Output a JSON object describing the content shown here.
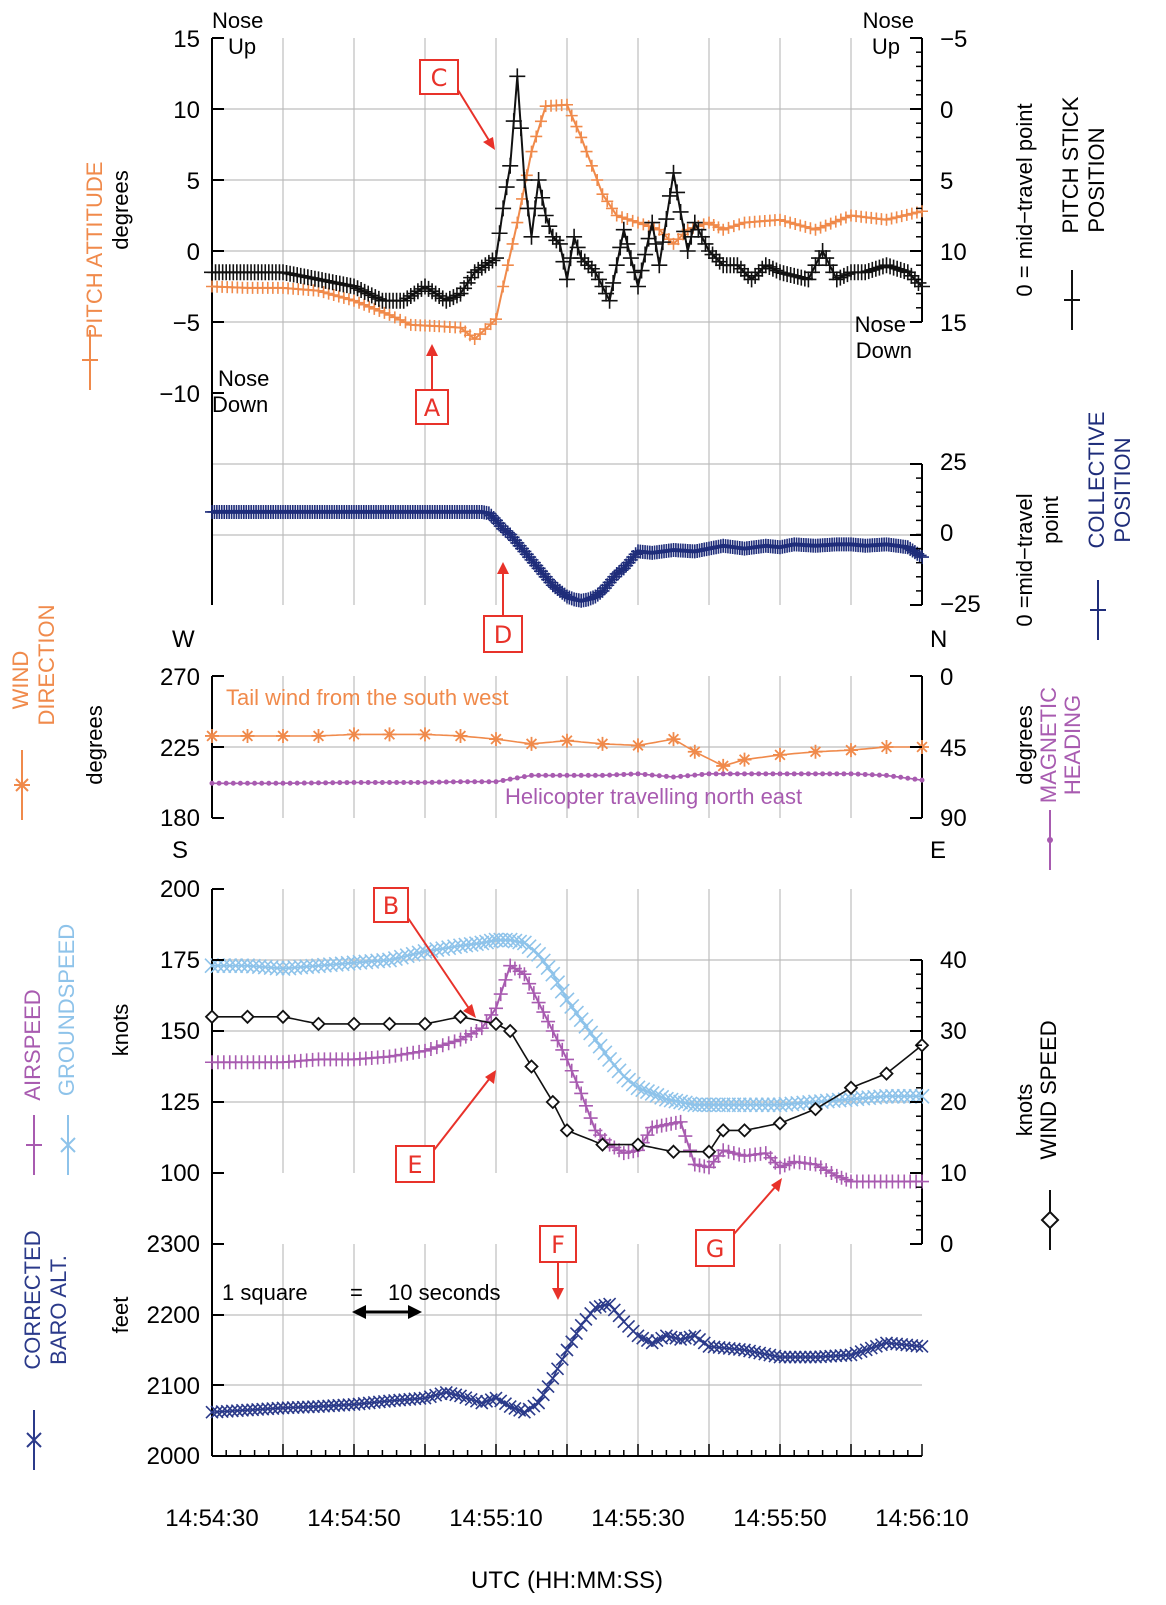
{
  "colors": {
    "pitch": "#f08a4b",
    "stick": "#111111",
    "collective": "#1f2d7a",
    "wind_dir": "#f08a4b",
    "heading": "#a85bb0",
    "airspeed": "#a85bb0",
    "groundspeed": "#8ec3ea",
    "wind_speed": "#111111",
    "baro": "#2b3a8a",
    "callout": "#e8322a",
    "grid": "#bdbdbd"
  },
  "xaxis": {
    "label": "UTC (HH:MM:SS)",
    "ticks": [
      "14:54:30",
      "14:54:50",
      "14:55:10",
      "14:55:30",
      "14:55:50",
      "14:56:10"
    ],
    "range_s": [
      0,
      100
    ]
  },
  "panels": {
    "pitch": {
      "left_label": "PITCH ATTITUDE",
      "left_unit": "degrees",
      "left_ticks": [
        "15",
        "10",
        "5",
        "0",
        "−5",
        "−10"
      ],
      "right_label1": "PITCH STICK",
      "right_label2": "POSITION",
      "right_unit": "0 = mid−travel point",
      "right_ticks": [
        "−5",
        "0",
        "5",
        "10",
        "15"
      ],
      "nose_up_l1": "Nose",
      "nose_up_l2": "Up",
      "nose_up_r1": "Nose",
      "nose_up_r2": "Up",
      "nose_down_l1": "Nose",
      "nose_down_l2": "Down",
      "nose_down_r1": "Nose",
      "nose_down_r2": "Down"
    },
    "collective": {
      "right_label1": "COLLECTIVE",
      "right_label2": "POSITION",
      "right_unit1": "0 =mid−travel",
      "right_unit2": "point",
      "right_ticks": [
        "25",
        "0",
        "−25"
      ]
    },
    "wind": {
      "left_label1": "WIND",
      "left_label2": "DIRECTION",
      "left_unit": "degrees",
      "left_ticks": [
        "270",
        "225",
        "180"
      ],
      "right_label1": "MAGNETIC",
      "right_label2": "HEADING",
      "right_unit": "degrees",
      "right_ticks": [
        "0",
        "45",
        "90"
      ],
      "compass_w": "W",
      "compass_s": "S",
      "compass_n": "N",
      "compass_e": "E",
      "note_top": "Tail wind from the south west",
      "note_bottom": "Helicopter travelling north east"
    },
    "speed": {
      "left_label1": "AIRSPEED",
      "left_label2": "GROUNDSPEED",
      "left_unit": "knots",
      "left_ticks": [
        "200",
        "175",
        "150",
        "125",
        "100"
      ],
      "right_label": "WIND SPEED",
      "right_unit": "knots",
      "right_ticks": [
        "40",
        "30",
        "20",
        "10",
        "0"
      ]
    },
    "baro": {
      "left_label1": "CORRECTED",
      "left_label2": "BARO ALT.",
      "left_unit": "feet",
      "left_ticks": [
        "2300",
        "2200",
        "2100",
        "2000"
      ],
      "scale_note_1": "1 square",
      "scale_note_eq": "=",
      "scale_note_2": "10 seconds"
    }
  },
  "callouts": {
    "A": "A",
    "B": "B",
    "C": "C",
    "D": "D",
    "E": "E",
    "F": "F",
    "G": "G"
  },
  "chart_data": [
    {
      "type": "line",
      "x_unit": "seconds after 14:54:30",
      "series": [
        {
          "name": "PITCH ATTITUDE",
          "axis": "left",
          "ylim": [
            -10,
            15
          ],
          "x": [
            0,
            5,
            10,
            15,
            20,
            25,
            28,
            32,
            35,
            37,
            40,
            41,
            43,
            45,
            47,
            50,
            52,
            55,
            57,
            60,
            63,
            65,
            67,
            70,
            72,
            75,
            80,
            85,
            90,
            95,
            100
          ],
          "y": [
            -2.5,
            -2.6,
            -2.6,
            -2.8,
            -3.5,
            -4.5,
            -5.2,
            -5.3,
            -5.4,
            -6.2,
            -4.8,
            -2.5,
            2.0,
            7.0,
            10.2,
            10.3,
            8.0,
            4.0,
            2.5,
            2.0,
            1.5,
            0.5,
            1.5,
            2.0,
            1.5,
            2.0,
            2.2,
            1.5,
            2.5,
            2.2,
            2.8
          ]
        },
        {
          "name": "PITCH STICK POSITION",
          "axis": "right",
          "ylim": [
            -5,
            15
          ],
          "x": [
            0,
            5,
            10,
            15,
            20,
            24,
            27,
            30,
            33,
            35,
            37,
            40,
            41,
            42,
            43,
            44,
            45,
            46,
            47,
            48,
            49,
            50,
            51,
            52,
            54,
            56,
            58,
            60,
            62,
            63,
            65,
            67,
            68,
            70,
            72,
            74,
            76,
            78,
            80,
            84,
            86,
            88,
            90,
            92,
            95,
            98,
            100
          ],
          "y": [
            11.5,
            11.5,
            11.5,
            12,
            12.5,
            13.5,
            13.5,
            12.5,
            13.5,
            13,
            11.5,
            10.5,
            7,
            4,
            -2.3,
            5,
            9,
            5,
            7.5,
            9,
            9.5,
            12,
            9,
            10.5,
            11.5,
            13.5,
            8.5,
            12.5,
            8,
            11,
            4.5,
            10,
            8,
            10,
            11,
            11,
            12,
            11,
            11.5,
            12,
            10,
            12,
            11.5,
            11.5,
            11,
            11.5,
            12.5
          ]
        }
      ]
    },
    {
      "type": "line",
      "x_unit": "seconds after 14:54:30",
      "series": [
        {
          "name": "COLLECTIVE POSITION",
          "ylim": [
            -25,
            25
          ],
          "x": [
            0,
            10,
            20,
            30,
            38,
            39,
            40,
            41,
            42,
            43,
            44,
            45,
            46,
            47,
            48,
            49,
            50,
            51,
            52,
            53,
            54,
            55,
            56,
            57,
            58,
            60,
            62,
            65,
            68,
            70,
            72,
            75,
            78,
            80,
            82,
            85,
            88,
            90,
            92,
            95,
            98,
            100
          ],
          "y": [
            8,
            8,
            8,
            8,
            8,
            7.5,
            5,
            2,
            0,
            -3,
            -6,
            -9,
            -12,
            -15,
            -18,
            -20,
            -22,
            -23,
            -23.5,
            -23,
            -22,
            -20,
            -17,
            -14,
            -12,
            -6,
            -6.5,
            -5.5,
            -6,
            -5,
            -4,
            -5,
            -4,
            -4.5,
            -3.5,
            -4,
            -3.5,
            -3.5,
            -4,
            -3.5,
            -4.5,
            -8
          ]
        }
      ]
    },
    {
      "type": "line",
      "x_unit": "seconds after 14:54:30",
      "series": [
        {
          "name": "WIND DIRECTION",
          "axis": "left",
          "ylim": [
            180,
            270
          ],
          "x": [
            0,
            5,
            10,
            15,
            20,
            25,
            30,
            35,
            40,
            45,
            50,
            55,
            60,
            65,
            68,
            72,
            75,
            80,
            85,
            90,
            95,
            100
          ],
          "y": [
            232,
            232,
            232,
            232,
            233,
            233,
            233,
            232,
            230,
            227,
            229,
            227,
            226,
            230,
            222,
            213,
            217,
            220,
            222,
            223,
            225,
            225
          ]
        },
        {
          "name": "MAGNETIC HEADING",
          "axis": "right",
          "ylim": [
            0,
            90
          ],
          "x": [
            0,
            10,
            20,
            30,
            35,
            38,
            40,
            45,
            50,
            55,
            60,
            65,
            70,
            75,
            80,
            85,
            90,
            95,
            100
          ],
          "y": [
            68,
            68,
            67.5,
            67.5,
            67,
            67,
            67,
            63,
            63,
            63,
            62,
            64,
            62,
            62,
            62,
            62,
            62,
            63,
            66
          ]
        }
      ]
    },
    {
      "type": "line",
      "x_unit": "seconds after 14:54:30",
      "series": [
        {
          "name": "AIRSPEED",
          "axis": "left",
          "ylim": [
            100,
            200
          ],
          "x": [
            0,
            5,
            10,
            15,
            20,
            25,
            30,
            35,
            38,
            40,
            42,
            44,
            46,
            48,
            50,
            52,
            54,
            56,
            58,
            60,
            62,
            64,
            66,
            68,
            70,
            72,
            75,
            78,
            80,
            82,
            85,
            88,
            90,
            95,
            100
          ],
          "y": [
            139,
            139,
            139,
            140,
            140,
            141,
            143,
            147,
            151,
            158,
            173,
            170,
            160,
            150,
            140,
            128,
            115,
            110,
            107,
            108,
            116,
            117,
            118,
            103,
            102,
            108,
            106,
            107,
            102,
            104,
            103,
            99,
            97,
            97,
            97
          ]
        },
        {
          "name": "GROUNDSPEED",
          "axis": "left",
          "ylim": [
            100,
            200
          ],
          "x": [
            0,
            5,
            10,
            15,
            20,
            25,
            30,
            35,
            38,
            40,
            42,
            44,
            46,
            48,
            50,
            52,
            54,
            56,
            58,
            60,
            62,
            64,
            66,
            68,
            70,
            72,
            75,
            80,
            85,
            90,
            95,
            100
          ],
          "y": [
            173,
            173,
            172,
            173,
            174,
            175,
            178,
            180,
            181,
            182,
            182,
            181,
            177,
            170,
            161,
            154,
            147,
            140,
            134,
            130,
            128,
            126,
            125,
            124,
            124,
            124,
            124,
            124,
            125,
            126,
            127,
            127
          ]
        },
        {
          "name": "WIND SPEED",
          "axis": "right",
          "ylim": [
            0,
            40
          ],
          "x": [
            0,
            5,
            10,
            15,
            20,
            25,
            30,
            35,
            40,
            42,
            45,
            48,
            50,
            55,
            60,
            65,
            70,
            72,
            75,
            80,
            85,
            90,
            95,
            100
          ],
          "y": [
            32,
            32,
            32,
            31,
            31,
            31,
            31,
            32,
            31,
            30,
            25,
            20,
            16,
            14,
            14,
            13,
            13,
            16,
            16,
            17,
            19,
            22,
            24,
            28
          ]
        }
      ]
    },
    {
      "type": "line",
      "x_unit": "seconds after 14:54:30",
      "series": [
        {
          "name": "CORRECTED BARO ALT.",
          "axis": "left",
          "ylim": [
            2000,
            2300
          ],
          "x": [
            0,
            5,
            10,
            15,
            20,
            25,
            30,
            33,
            35,
            38,
            40,
            42,
            44,
            46,
            48,
            50,
            52,
            54,
            56,
            58,
            60,
            62,
            64,
            66,
            68,
            70,
            75,
            80,
            85,
            90,
            95,
            100
          ],
          "y": [
            2062,
            2065,
            2068,
            2070,
            2073,
            2078,
            2082,
            2090,
            2085,
            2075,
            2082,
            2070,
            2062,
            2075,
            2110,
            2150,
            2185,
            2210,
            2215,
            2190,
            2170,
            2160,
            2170,
            2165,
            2170,
            2155,
            2150,
            2140,
            2140,
            2143,
            2160,
            2155
          ]
        }
      ]
    }
  ]
}
